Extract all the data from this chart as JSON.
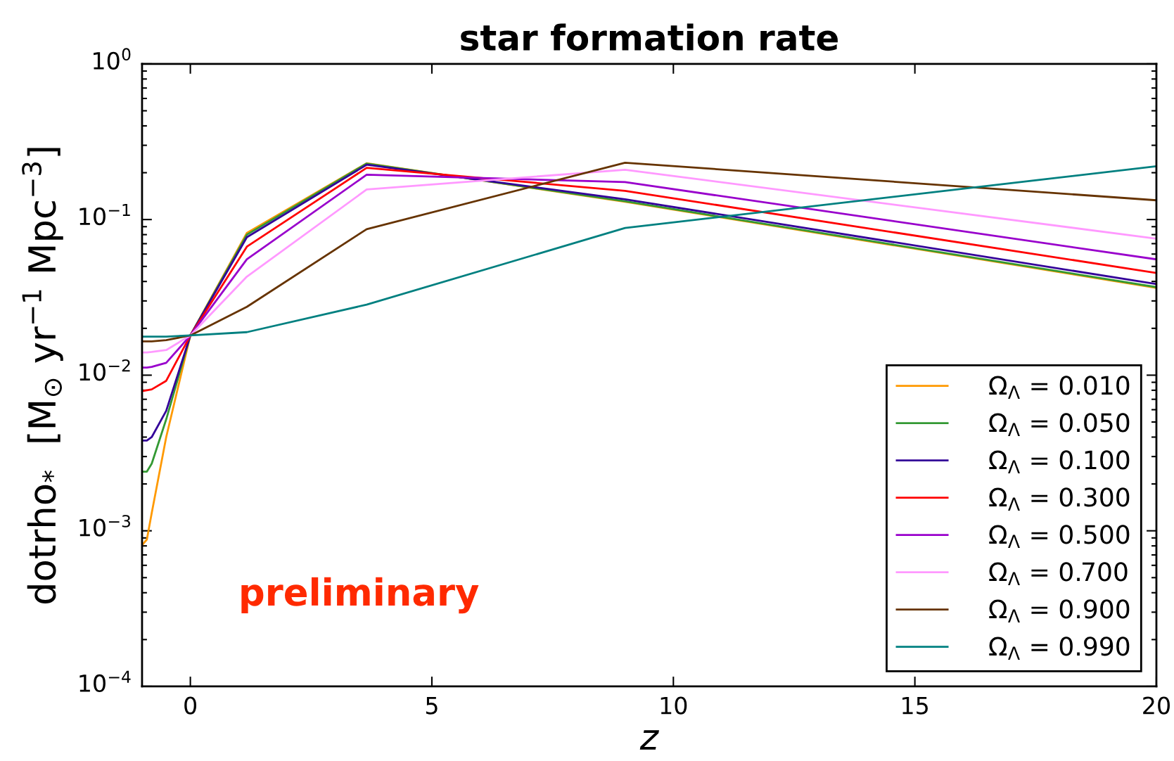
{
  "chart_data": {
    "type": "line",
    "title": "star formation rate",
    "xlabel": "z",
    "ylabel": "dotrho$_{*}$  [M$_{⊙}$ yr$^{−1}$ Mpc$^{−3}$]",
    "x": [
      -1,
      -0.9,
      -0.8,
      -0.5,
      0,
      1.17,
      3.65,
      9,
      20
    ],
    "series": [
      {
        "name": "Ω$_{Λ}$ = 0.010",
        "color": "#ff9900",
        "values": [
          0.00081,
          0.00088,
          0.0013,
          0.004,
          0.018,
          0.082,
          0.23,
          0.13,
          0.0364
        ]
      },
      {
        "name": "Ω$_{Λ}$ = 0.050",
        "color": "#339933",
        "values": [
          0.0024,
          0.0024,
          0.0027,
          0.0052,
          0.018,
          0.08,
          0.229,
          0.131,
          0.0368
        ]
      },
      {
        "name": "Ω$_{Λ}$ = 0.100",
        "color": "#330099",
        "values": [
          0.0038,
          0.0038,
          0.004,
          0.0059,
          0.018,
          0.077,
          0.225,
          0.135,
          0.0385
        ]
      },
      {
        "name": "Ω$_{Λ}$ = 0.300",
        "color": "#ff0000",
        "values": [
          0.0079,
          0.008,
          0.0081,
          0.0092,
          0.018,
          0.067,
          0.215,
          0.153,
          0.0454
        ]
      },
      {
        "name": "Ω$_{Λ}$ = 0.500",
        "color": "#9900cc",
        "values": [
          0.0112,
          0.0112,
          0.0113,
          0.012,
          0.018,
          0.0556,
          0.194,
          0.174,
          0.0555
        ]
      },
      {
        "name": "Ω$_{Λ}$ = 0.700",
        "color": "#ff99ff",
        "values": [
          0.014,
          0.014,
          0.0141,
          0.0145,
          0.018,
          0.043,
          0.156,
          0.209,
          0.0754
        ]
      },
      {
        "name": "Ω$_{Λ}$ = 0.900",
        "color": "#663300",
        "values": [
          0.0165,
          0.0165,
          0.0165,
          0.0168,
          0.018,
          0.0275,
          0.0867,
          0.232,
          0.133
        ]
      },
      {
        "name": "Ω$_{Λ}$ = 0.990",
        "color": "#008080",
        "values": [
          0.0177,
          0.0177,
          0.0177,
          0.0177,
          0.018,
          0.0189,
          0.0284,
          0.0883,
          0.22
        ]
      }
    ],
    "annotations": [
      "preliminary"
    ],
    "log": "y",
    "xlim": [
      -1,
      20
    ],
    "xticks": [
      0,
      5,
      10,
      15,
      20
    ],
    "ylim": [
      0.0001,
      1
    ],
    "yticks": [
      {
        "value": 0.0001,
        "label": "10$^{−4}$"
      },
      {
        "value": 0.001,
        "label": "10$^{−3}$"
      },
      {
        "value": 0.01,
        "label": "10$^{−2}$"
      },
      {
        "value": 0.1,
        "label": "10$^{−1}$"
      },
      {
        "value": 1,
        "label": "10$^{0}$"
      }
    ],
    "grid": false,
    "legend": "bottom right",
    "line_style": "solid",
    "marker": "none"
  }
}
